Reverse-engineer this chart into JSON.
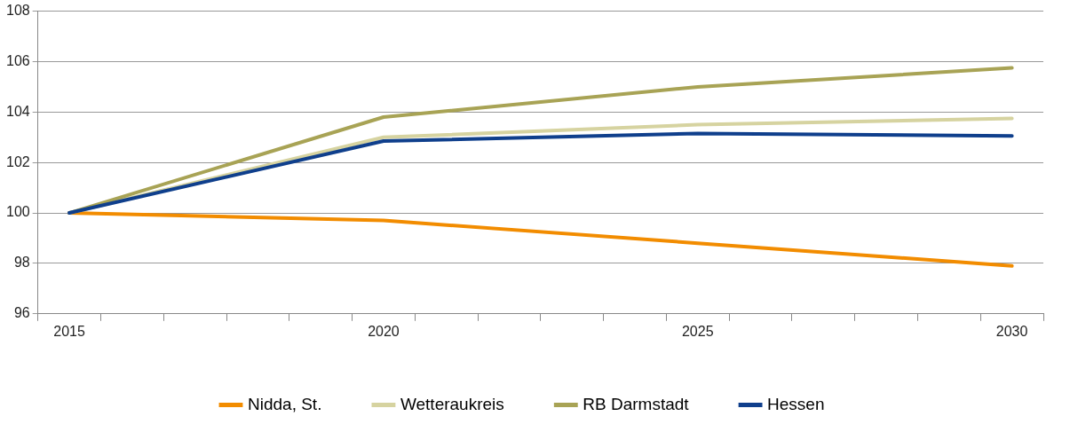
{
  "chart_data": {
    "type": "line",
    "x": [
      2015,
      2020,
      2025,
      2030
    ],
    "series": [
      {
        "name": "Nidda, St.",
        "color": "#f28c00",
        "values": [
          100,
          99.7,
          98.8,
          97.9
        ]
      },
      {
        "name": "Wetteraukreis",
        "color": "#d6d3a0",
        "values": [
          100,
          103.0,
          103.5,
          103.75
        ]
      },
      {
        "name": "RB Darmstadt",
        "color": "#a8a355",
        "values": [
          100,
          103.8,
          105.0,
          105.75
        ]
      },
      {
        "name": "Hessen",
        "color": "#0f3f8c",
        "values": [
          100,
          102.85,
          103.15,
          103.05
        ]
      }
    ],
    "xlim": [
      2014.5,
      2030.5
    ],
    "xticks": [
      {
        "value": 2014.5,
        "label": null
      },
      2015,
      {
        "value": 2015.5,
        "label": null
      },
      {
        "value": 2016.5,
        "label": null
      },
      {
        "value": 2017.5,
        "label": null
      },
      {
        "value": 2018.5,
        "label": null
      },
      {
        "value": 2019.5,
        "label": null
      },
      2020,
      {
        "value": 2020.5,
        "label": null
      },
      {
        "value": 2021.5,
        "label": null
      },
      {
        "value": 2022.5,
        "label": null
      },
      {
        "value": 2023.5,
        "label": null
      },
      {
        "value": 2024.5,
        "label": null
      },
      2025,
      {
        "value": 2025.5,
        "label": null
      },
      {
        "value": 2026.5,
        "label": null
      },
      {
        "value": 2027.5,
        "label": null
      },
      {
        "value": 2028.5,
        "label": null
      },
      {
        "value": 2029.5,
        "label": null
      },
      2030,
      {
        "value": 2030.5,
        "label": null
      }
    ],
    "ylim": [
      96,
      108
    ],
    "yticks": [
      96,
      98,
      100,
      102,
      104,
      106,
      108
    ],
    "grid": "y",
    "legend": "bottom",
    "marker": "none",
    "line_style": "solid"
  }
}
